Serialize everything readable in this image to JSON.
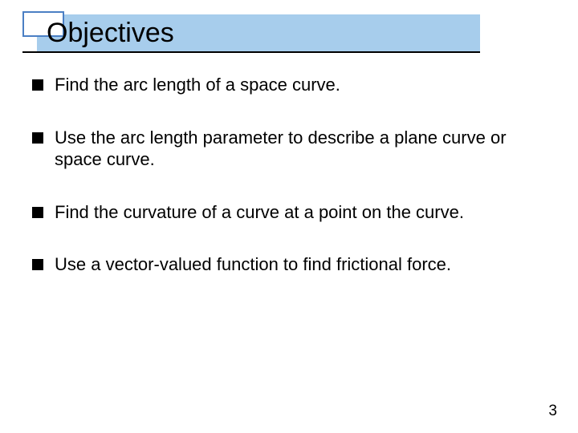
{
  "title": "Objectives",
  "colors": {
    "band_bg": "#a7cdec",
    "accent_border": "#4b7fc4",
    "accent_bg": "#ffffff",
    "page_bg": "#ffffff",
    "text": "#000000",
    "bullet": "#000000"
  },
  "typography": {
    "title_fontsize": 34,
    "body_fontsize": 22,
    "pagenum_fontsize": 19,
    "font_family": "Arial"
  },
  "layout": {
    "slide_width": 720,
    "slide_height": 540,
    "bullet_marker_size": 14,
    "bullet_gap_below": 38
  },
  "bullets": [
    "Find the arc length of a space curve.",
    "Use the arc length parameter to describe a plane curve or space curve.",
    "Find the curvature of a curve at a point on the curve.",
    "Use a vector-valued function to find frictional force."
  ],
  "page_number": "3"
}
